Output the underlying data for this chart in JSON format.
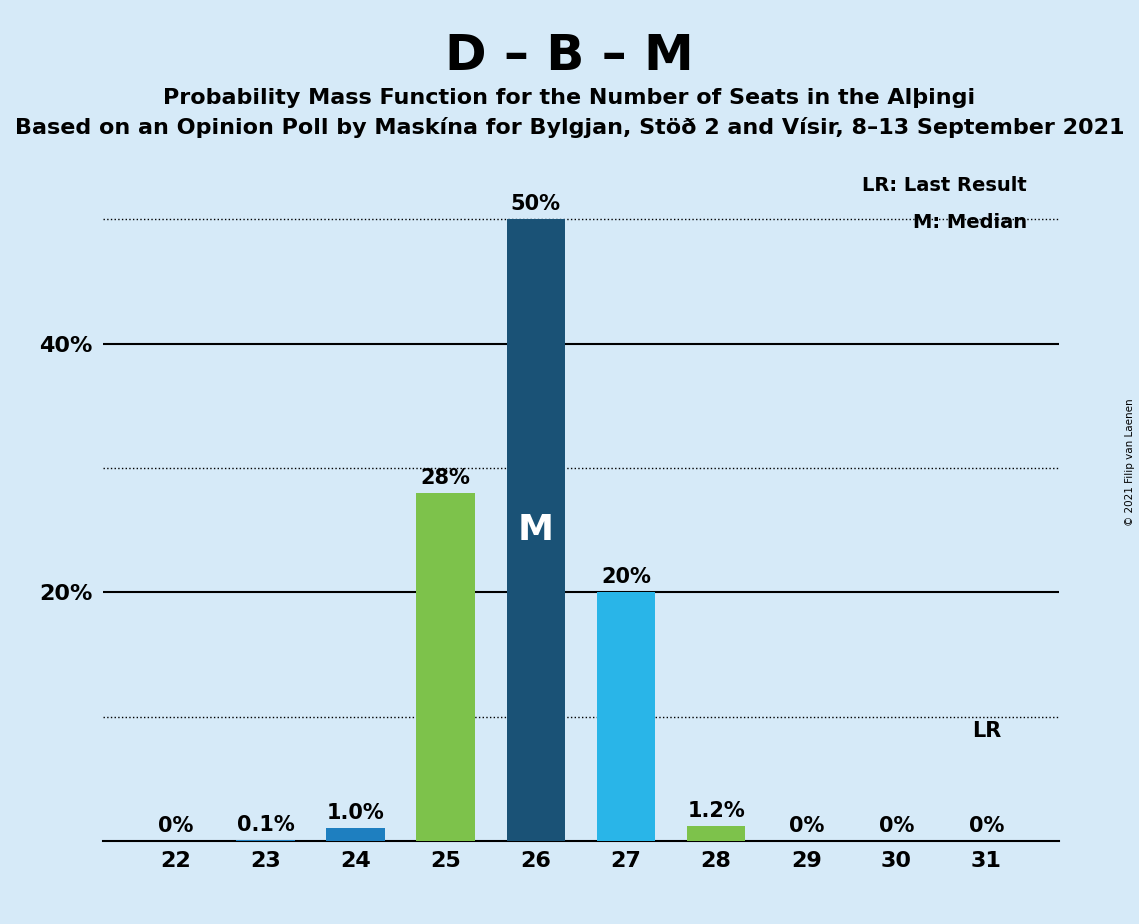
{
  "title": "D – B – M",
  "subtitle1": "Probability Mass Function for the Number of Seats in the Alþingi",
  "subtitle2": "Based on an Opinion Poll by Maskína for Bylgjan, Stöð 2 and Vísir, 8–13 September 2021",
  "copyright": "© 2021 Filip van Laenen",
  "categories": [
    22,
    23,
    24,
    25,
    26,
    27,
    28,
    29,
    30,
    31
  ],
  "values": [
    0.0,
    0.1,
    1.0,
    28.0,
    50.0,
    20.0,
    1.2,
    0.0,
    0.0,
    0.0
  ],
  "labels": [
    "0%",
    "0.1%",
    "1.0%",
    "28%",
    "50%",
    "20%",
    "1.2%",
    "0%",
    "0%",
    "0%"
  ],
  "bar_colors": [
    "#1e7fc0",
    "#1e7fc0",
    "#1e7fc0",
    "#7dc24b",
    "#1a5276",
    "#29b5e8",
    "#7dc24b",
    "#1e7fc0",
    "#1e7fc0",
    "#1e7fc0"
  ],
  "median_bar_index": 4,
  "median_label": "M",
  "lr_label": "LR",
  "lr_label_text": "LR: Last Result",
  "m_label_text": "M: Median",
  "background_color": "#d6eaf8",
  "ylim": [
    0,
    55
  ],
  "dotted_lines": [
    10,
    30,
    50
  ],
  "solid_lines": [
    20,
    40
  ],
  "title_fontsize": 36,
  "subtitle_fontsize": 16,
  "label_fontsize": 15,
  "tick_fontsize": 16
}
